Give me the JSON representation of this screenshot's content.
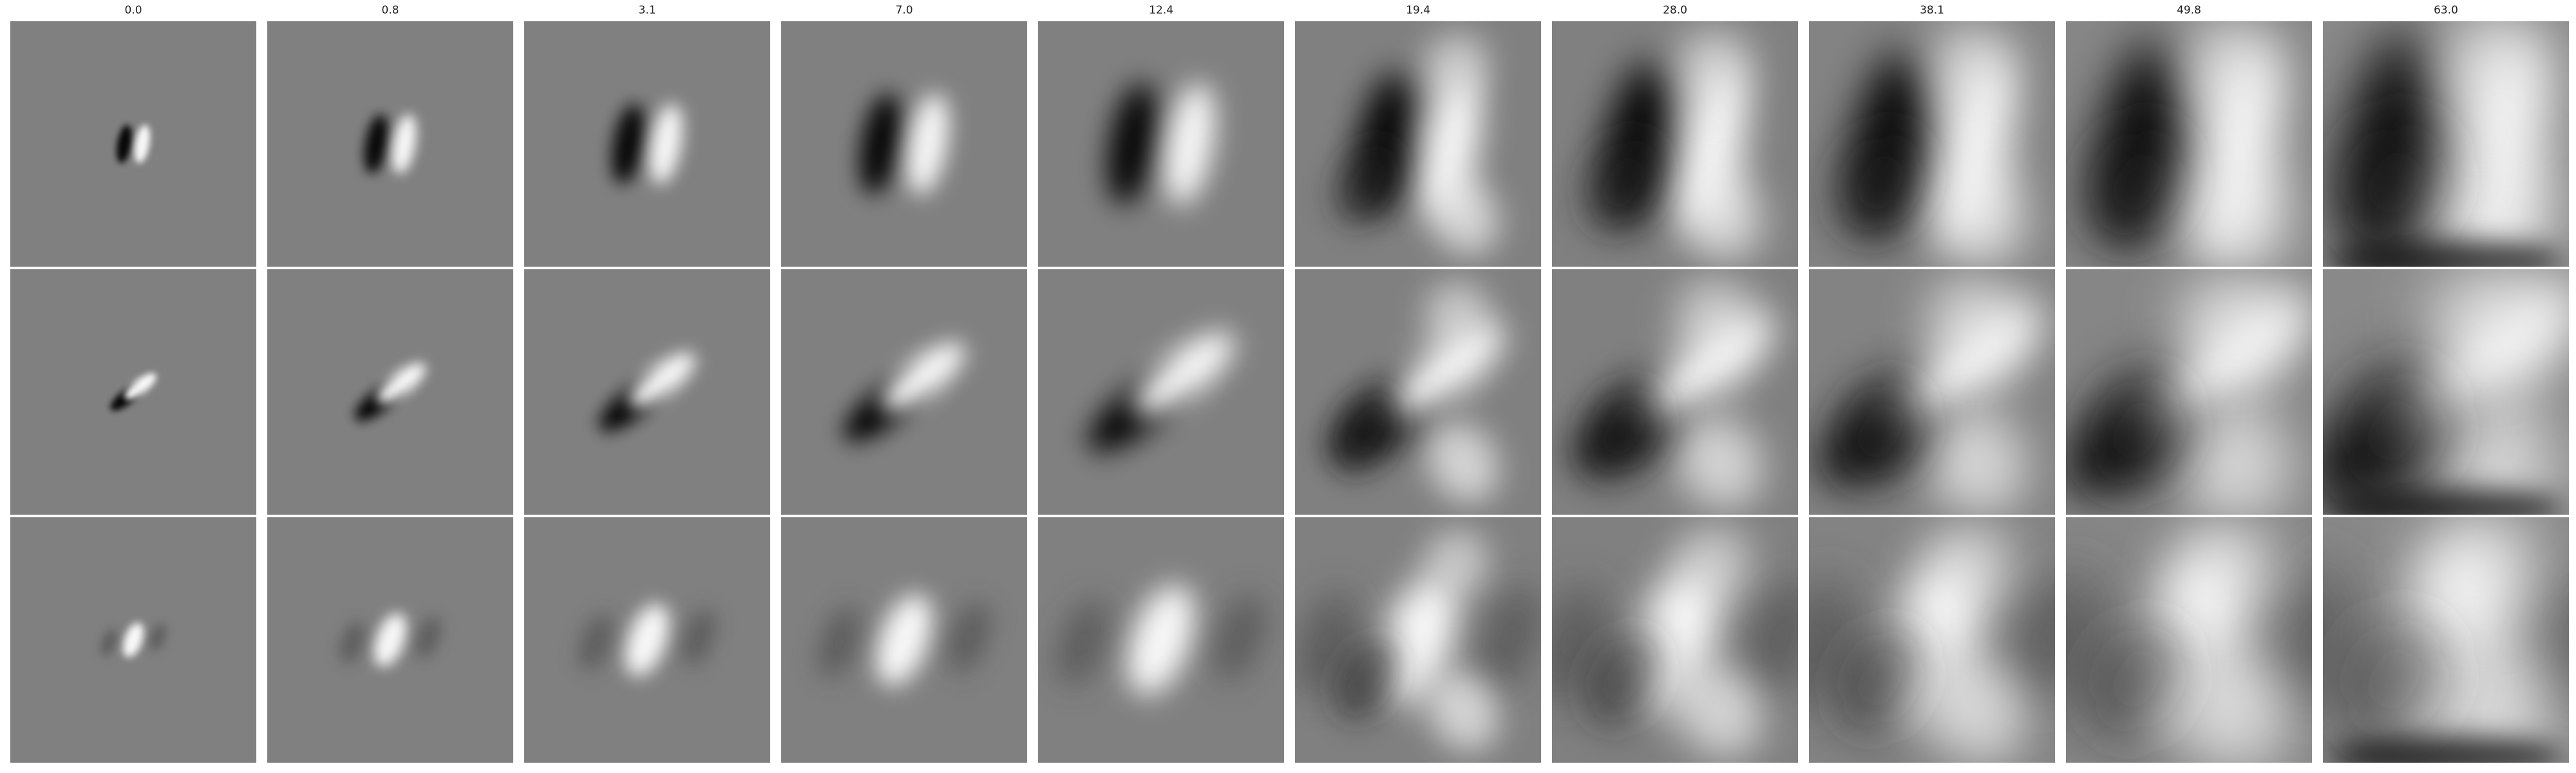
{
  "column_titles": [
    "0.0",
    "0.8",
    "3.1",
    "7.0",
    "12.4",
    "19.4",
    "28.0",
    "38.1",
    "49.8",
    "63.0"
  ]
}
